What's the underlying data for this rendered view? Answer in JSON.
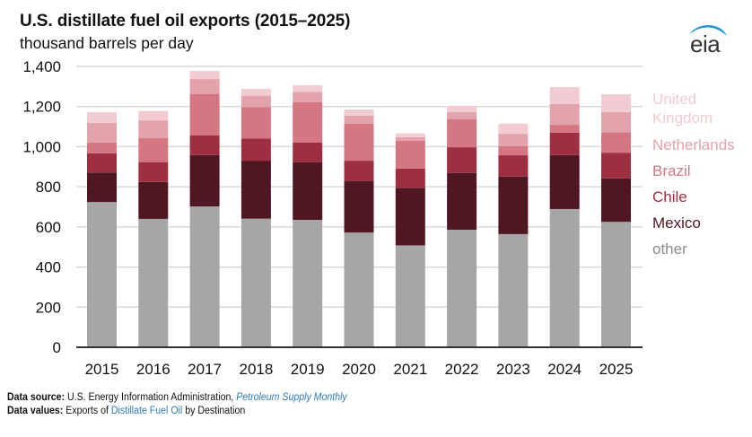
{
  "header": {
    "title": "U.S. distillate fuel oil exports (2015–2025)",
    "subtitle": "thousand barrels per day",
    "logo_text": "eia",
    "logo_icon": "eia-arc-logo"
  },
  "footer": {
    "source_label": "Data source:",
    "source_text": "U.S. Energy Information Administration,",
    "source_link": "Petroleum Supply Monthly",
    "values_label": "Data values:",
    "values_prefix": "Exports of",
    "values_link": "Distillate Fuel Oil",
    "values_suffix": "by Destination"
  },
  "chart_data": {
    "type": "bar",
    "stacked": true,
    "title": "U.S. distillate fuel oil exports (2015–2025)",
    "ylabel": "thousand barrels per day",
    "xlabel": "",
    "ylim": [
      0,
      1400
    ],
    "yticks": [
      0,
      200,
      400,
      600,
      800,
      1000,
      1200,
      1400
    ],
    "ytick_labels": [
      "0",
      "200",
      "400",
      "600",
      "800",
      "1,000",
      "1,200",
      "1,400"
    ],
    "grid": true,
    "legend_placement": "right",
    "categories": [
      "2015",
      "2016",
      "2017",
      "2018",
      "2019",
      "2020",
      "2021",
      "2022",
      "2023",
      "2024",
      "2025"
    ],
    "series": [
      {
        "name": "other",
        "color": "#a6a6a6",
        "label_color": "#8c8c8c",
        "values": [
          724,
          640,
          702,
          641,
          635,
          572,
          508,
          586,
          564,
          689,
          625
        ]
      },
      {
        "name": "Mexico",
        "color": "#4f1721",
        "label_color": "#4f1721",
        "values": [
          147,
          184,
          256,
          289,
          288,
          257,
          287,
          283,
          287,
          269,
          217
        ]
      },
      {
        "name": "Chile",
        "color": "#9e2f40",
        "label_color": "#9e2f40",
        "values": [
          96,
          99,
          99,
          111,
          97,
          101,
          96,
          128,
          106,
          112,
          128
        ]
      },
      {
        "name": "Brazil",
        "color": "#d47783",
        "label_color": "#d47783",
        "values": [
          54,
          119,
          206,
          156,
          202,
          184,
          139,
          139,
          45,
          39,
          102
        ]
      },
      {
        "name": "Netherlands",
        "color": "#e3a3ac",
        "label_color": "#e3a3ac",
        "values": [
          98,
          89,
          74,
          57,
          51,
          40,
          17,
          36,
          62,
          104,
          100
        ]
      },
      {
        "name": "United Kingdom",
        "color": "#f2ccd2",
        "label_color": "#f2ccd2",
        "values": [
          53,
          47,
          40,
          34,
          33,
          31,
          19,
          31,
          51,
          84,
          89
        ]
      }
    ],
    "legend_lines": [
      [
        "United",
        "Kingdom"
      ],
      [
        "Netherlands"
      ],
      [
        "Brazil"
      ],
      [
        "Chile"
      ],
      [
        "Mexico"
      ],
      [
        "other"
      ]
    ]
  }
}
